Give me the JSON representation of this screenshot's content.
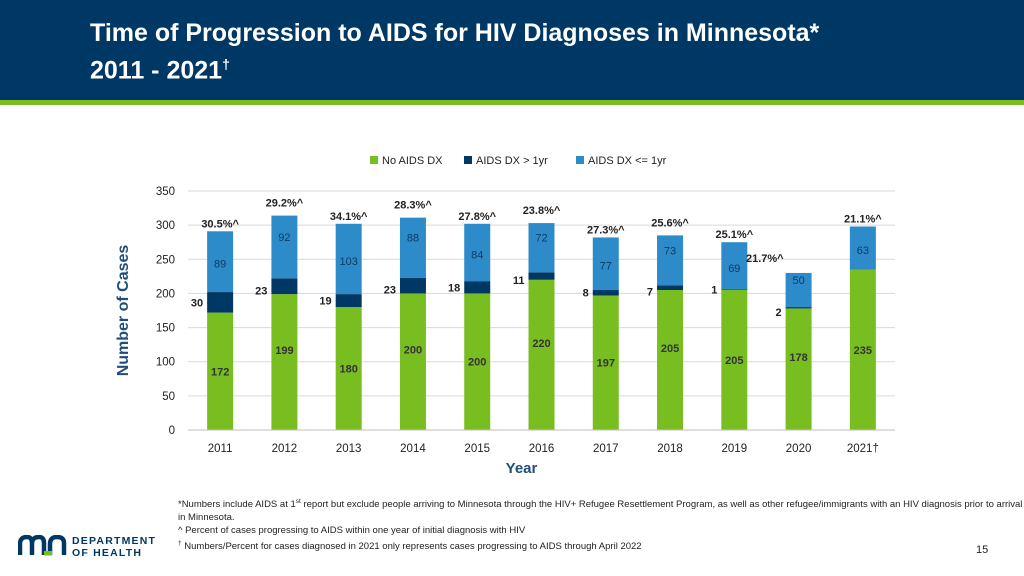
{
  "header": {
    "title_line1": "Time of Progression to AIDS for HIV Diagnoses in Minnesota*",
    "title_line2": "2011 - 2021",
    "title_dagger": "†"
  },
  "colors": {
    "header_bg": "#003865",
    "accent": "#78be20",
    "no_aids": "#78be20",
    "aids_gt1": "#003865",
    "aids_le1": "#2e8bc9"
  },
  "chart_data": {
    "type": "bar",
    "stacked": true,
    "title": "",
    "xlabel": "Year",
    "ylabel": "Number of Cases",
    "ylim": [
      0,
      350
    ],
    "yticks": [
      0,
      50,
      100,
      150,
      200,
      250,
      300,
      350
    ],
    "grid": true,
    "legend_position": "top",
    "categories": [
      "2011",
      "2012",
      "2013",
      "2014",
      "2015",
      "2016",
      "2017",
      "2018",
      "2019",
      "2020",
      "2021†"
    ],
    "series": [
      {
        "name": "No AIDS DX",
        "values": [
          172,
          199,
          180,
          200,
          200,
          220,
          197,
          205,
          205,
          178,
          235
        ]
      },
      {
        "name": "AIDS DX > 1yr",
        "values": [
          30,
          23,
          19,
          23,
          18,
          11,
          8,
          7,
          1,
          2,
          0
        ]
      },
      {
        "name": "AIDS DX <= 1yr",
        "values": [
          89,
          92,
          103,
          88,
          84,
          72,
          77,
          73,
          69,
          50,
          63
        ]
      }
    ],
    "mid_labels": [
      "172",
      "199",
      "180",
      "200",
      "200",
      "220",
      "197",
      "205",
      "205",
      "178",
      "235"
    ],
    "gt1_labels": [
      "30",
      "23",
      "19",
      "23",
      "18",
      "11",
      "8",
      "7",
      "1",
      "2",
      ""
    ],
    "le1_labels": [
      "89",
      "92",
      "103",
      "88",
      "84",
      "72",
      "77",
      "73",
      "69",
      "50",
      "63"
    ],
    "pct_labels": [
      "30.5%^",
      "29.2%^",
      "34.1%^",
      "28.3%^",
      "27.8%^",
      "23.8%^",
      "27.3%^",
      "25.6%^",
      "25.1%^",
      "21.7%^",
      "21.1%^"
    ]
  },
  "footnotes": {
    "line1_prefix": "*Numbers include AIDS at 1",
    "line1_sup": "st",
    "line1_rest": " report but exclude people arriving to Minnesota through the HIV+ Refugee Resettlement Program, as well as other refugee/immigrants with an HIV diagnosis prior to arrival in Minnesota.",
    "line2": "^ Percent of cases progressing to AIDS within one year of initial diagnosis with HIV",
    "line3_sup": "†",
    "line3": " Numbers/Percent for cases diagnosed in 2021 only represents cases progressing to AIDS through April 2022"
  },
  "footer": {
    "logo_line1": "DEPARTMENT",
    "logo_line2": "OF HEALTH",
    "page_number": "15"
  }
}
